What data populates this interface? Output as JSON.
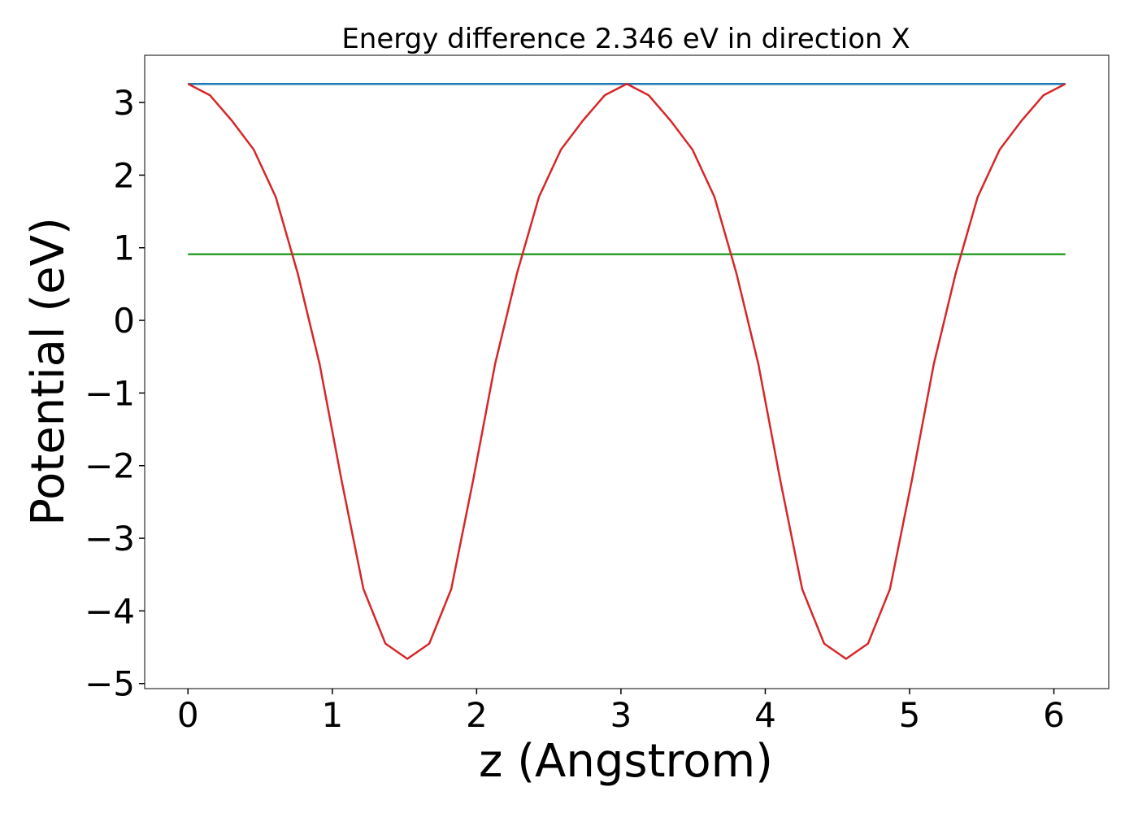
{
  "chart_data": {
    "type": "line",
    "title": "Energy difference 2.346 eV in direction X",
    "x_label": "z (Angstrom)",
    "y_label": "Potential (eV)",
    "xlim": [
      -0.3,
      6.38
    ],
    "ylim": [
      -5.07,
      3.65
    ],
    "xticks": [
      0,
      1,
      2,
      3,
      4,
      5,
      6
    ],
    "yticks": [
      {
        "value": -5,
        "label": "−5"
      },
      {
        "value": -4,
        "label": "−4"
      },
      {
        "value": -3,
        "label": "−3"
      },
      {
        "value": -2,
        "label": "−2"
      },
      {
        "value": -1,
        "label": "−1"
      },
      0,
      1,
      2,
      3
    ],
    "series": [
      {
        "color": "#1f77b4",
        "x": [
          0,
          6.08
        ],
        "values": [
          3.256,
          3.256
        ]
      },
      {
        "color": "#2ca02c",
        "x": [
          0,
          6.08
        ],
        "values": [
          0.91,
          0.91
        ]
      },
      {
        "color": "#d62728",
        "x": [
          0,
          0.152,
          0.304,
          0.456,
          0.608,
          0.76,
          0.912,
          1.064,
          1.216,
          1.368,
          1.52,
          1.672,
          1.824,
          1.976,
          2.128,
          2.28,
          2.432,
          2.584,
          2.736,
          2.888,
          3.04,
          3.192,
          3.344,
          3.496,
          3.648,
          3.8,
          3.952,
          4.104,
          4.256,
          4.408,
          4.56,
          4.712,
          4.864,
          5.016,
          5.168,
          5.32,
          5.472,
          5.624,
          5.776,
          5.928,
          6.08
        ],
        "values": [
          3.256,
          3.1,
          2.75,
          2.35,
          1.7,
          0.65,
          -0.6,
          -2.2,
          -3.7,
          -4.45,
          -4.66,
          -4.45,
          -3.7,
          -2.2,
          -0.6,
          0.65,
          1.7,
          2.35,
          2.75,
          3.1,
          3.256,
          3.1,
          2.75,
          2.35,
          1.7,
          0.65,
          -0.6,
          -2.2,
          -3.7,
          -4.45,
          -4.66,
          -4.45,
          -3.7,
          -2.2,
          -0.6,
          0.65,
          1.7,
          2.35,
          2.75,
          3.1,
          3.256
        ]
      }
    ]
  }
}
